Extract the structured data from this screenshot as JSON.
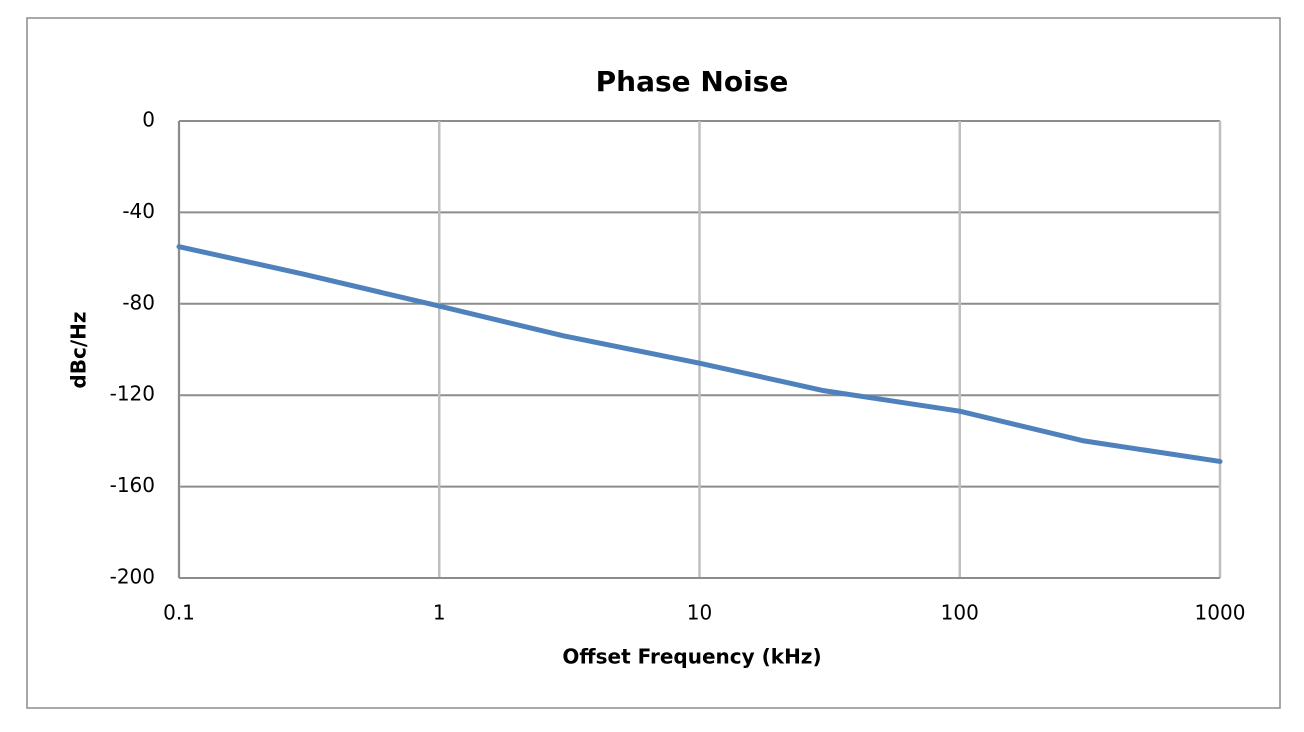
{
  "chart_data": {
    "type": "line",
    "title": "Phase Noise",
    "x_label": "Offset Frequency (kHz)",
    "y_label": "dBc/Hz",
    "x": [
      0.1,
      0.3,
      1,
      3,
      10,
      30,
      100,
      300,
      1000
    ],
    "series": [
      {
        "color": "#4f81bd",
        "values": [
          -55,
          -67,
          -81,
          -94,
          -106,
          -118,
          -127,
          -140,
          -149
        ]
      }
    ],
    "xscale": "log",
    "xlim": [
      0.1,
      1000
    ],
    "xticks": [
      0.1,
      1,
      10,
      100,
      1000
    ],
    "ylim": [
      -200,
      0
    ],
    "yticks": [
      0,
      -40,
      -80,
      -120,
      -160,
      -200
    ],
    "grid": true
  }
}
